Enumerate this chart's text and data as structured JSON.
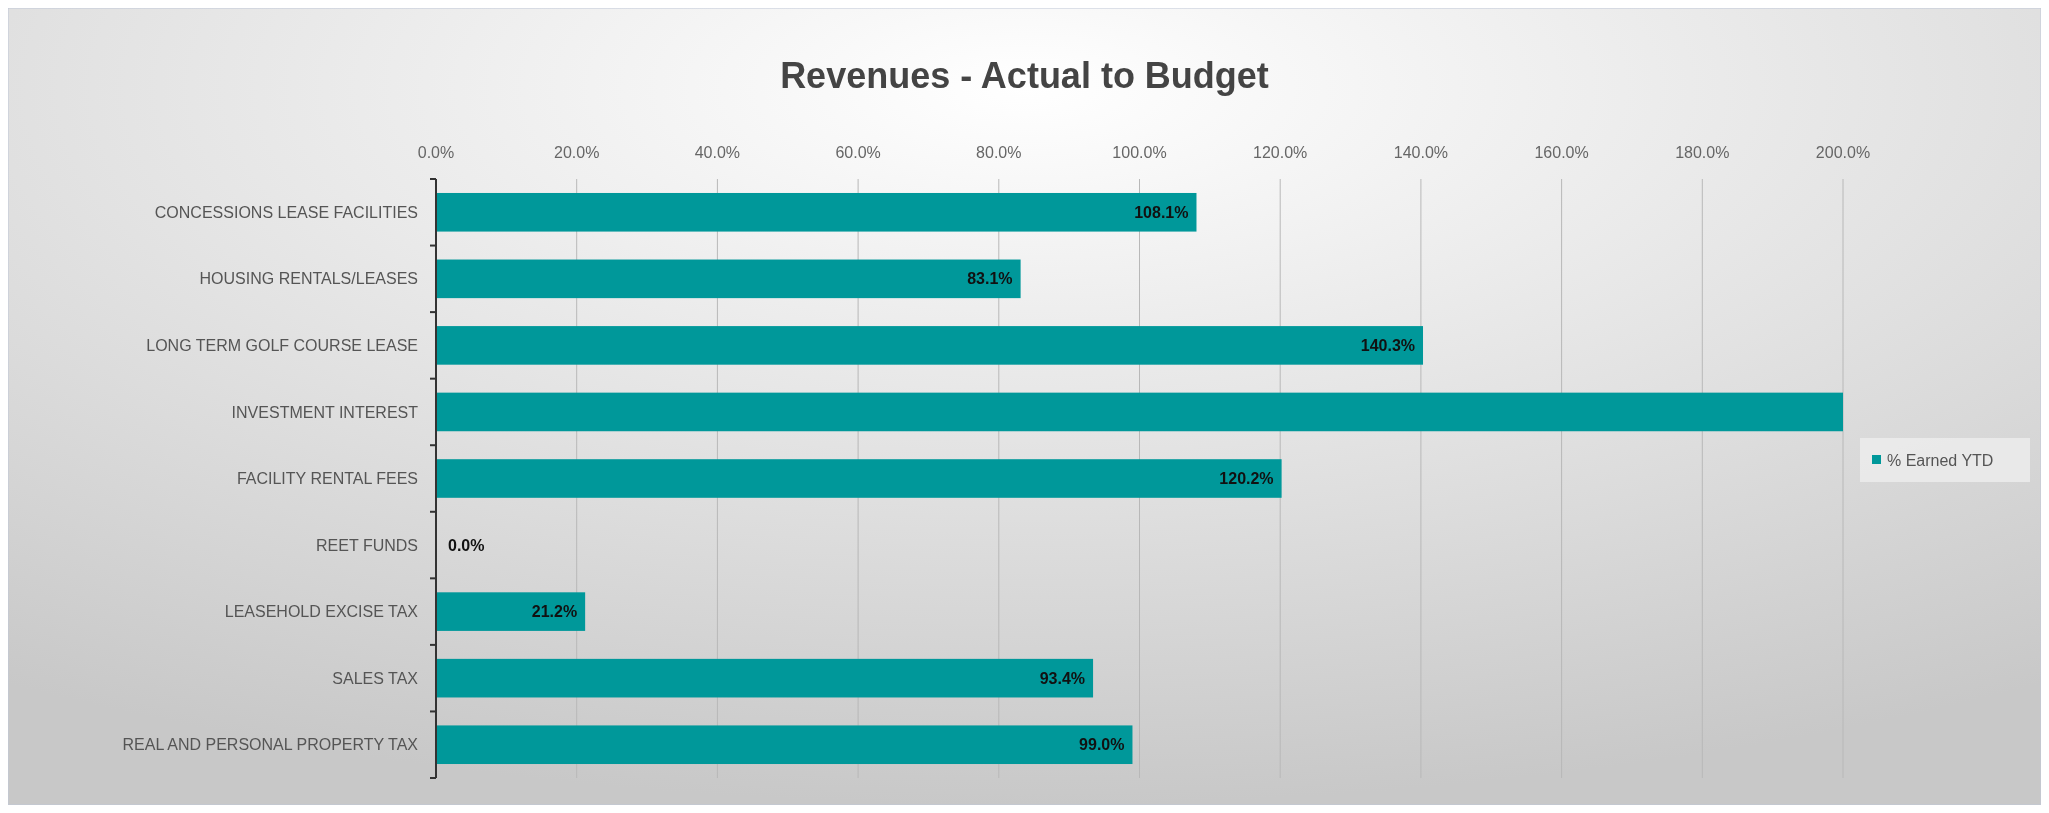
{
  "chart_data": {
    "type": "bar",
    "orientation": "horizontal",
    "title": "Revenues - Actual to Budget",
    "categories": [
      "CONCESSIONS LEASE FACILITIES",
      "HOUSING RENTALS/LEASES",
      "LONG TERM  GOLF COURSE LEASE",
      "INVESTMENT INTEREST",
      "FACILITY RENTAL FEES",
      "REET FUNDS",
      "LEASEHOLD EXCISE TAX",
      "SALES TAX",
      "REAL AND PERSONAL PROPERTY TAX"
    ],
    "series": [
      {
        "name": "% Earned YTD",
        "color": "#00989a",
        "values": [
          108.1,
          83.1,
          140.3,
          200,
          120.2,
          0,
          21.2,
          93.4,
          99.0
        ],
        "value_labels": [
          "108.1%",
          "83.1%",
          "140.3%",
          null,
          "120.2%",
          "0.0%",
          "21.2%",
          "93.4%",
          "99.0%"
        ]
      }
    ],
    "xlim": [
      0,
      200
    ],
    "xticks": [
      {
        "value": 0,
        "label": "0.0%"
      },
      {
        "value": 20,
        "label": "20.0%"
      },
      {
        "value": 40,
        "label": "40.0%"
      },
      {
        "value": 60,
        "label": "60.0%"
      },
      {
        "value": 80,
        "label": "80.0%"
      },
      {
        "value": 100,
        "label": "100.0%"
      },
      {
        "value": 120,
        "label": "120.0%"
      },
      {
        "value": 140,
        "label": "140.0%"
      },
      {
        "value": 160,
        "label": "160.0%"
      },
      {
        "value": 180,
        "label": "180.0%"
      },
      {
        "value": 200,
        "label": "200.0%"
      }
    ],
    "grid": "x",
    "legend": "right"
  }
}
